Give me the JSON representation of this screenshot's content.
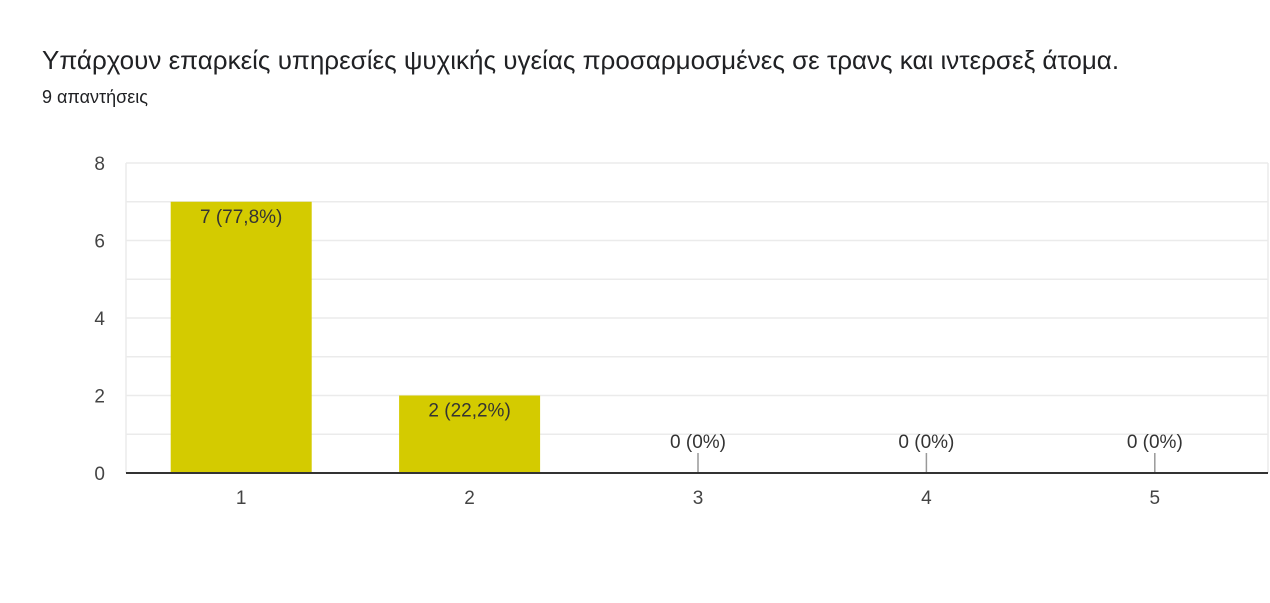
{
  "question": {
    "title": "Υπάρχουν επαρκείς υπηρεσίες ψυχικής υγείας προσαρμοσμένες σε τρανς και ιντερσεξ άτομα.",
    "response_count": "9 απαντήσεις"
  },
  "colors": {
    "bar": "#d4cb00",
    "grid": "#ebebeb",
    "axis": "#333333",
    "zero_tick": "#999999"
  },
  "chart_data": {
    "type": "bar",
    "categories": [
      "1",
      "2",
      "3",
      "4",
      "5"
    ],
    "values": [
      7,
      2,
      0,
      0,
      0
    ],
    "data_labels": [
      "7 (77,8%)",
      "2 (22,2%)",
      "0 (0%)",
      "0 (0%)",
      "0 (0%)"
    ],
    "y_ticks": [
      0,
      2,
      4,
      6,
      8
    ],
    "ylim": [
      0,
      8
    ],
    "grid": true,
    "legend": "none"
  }
}
